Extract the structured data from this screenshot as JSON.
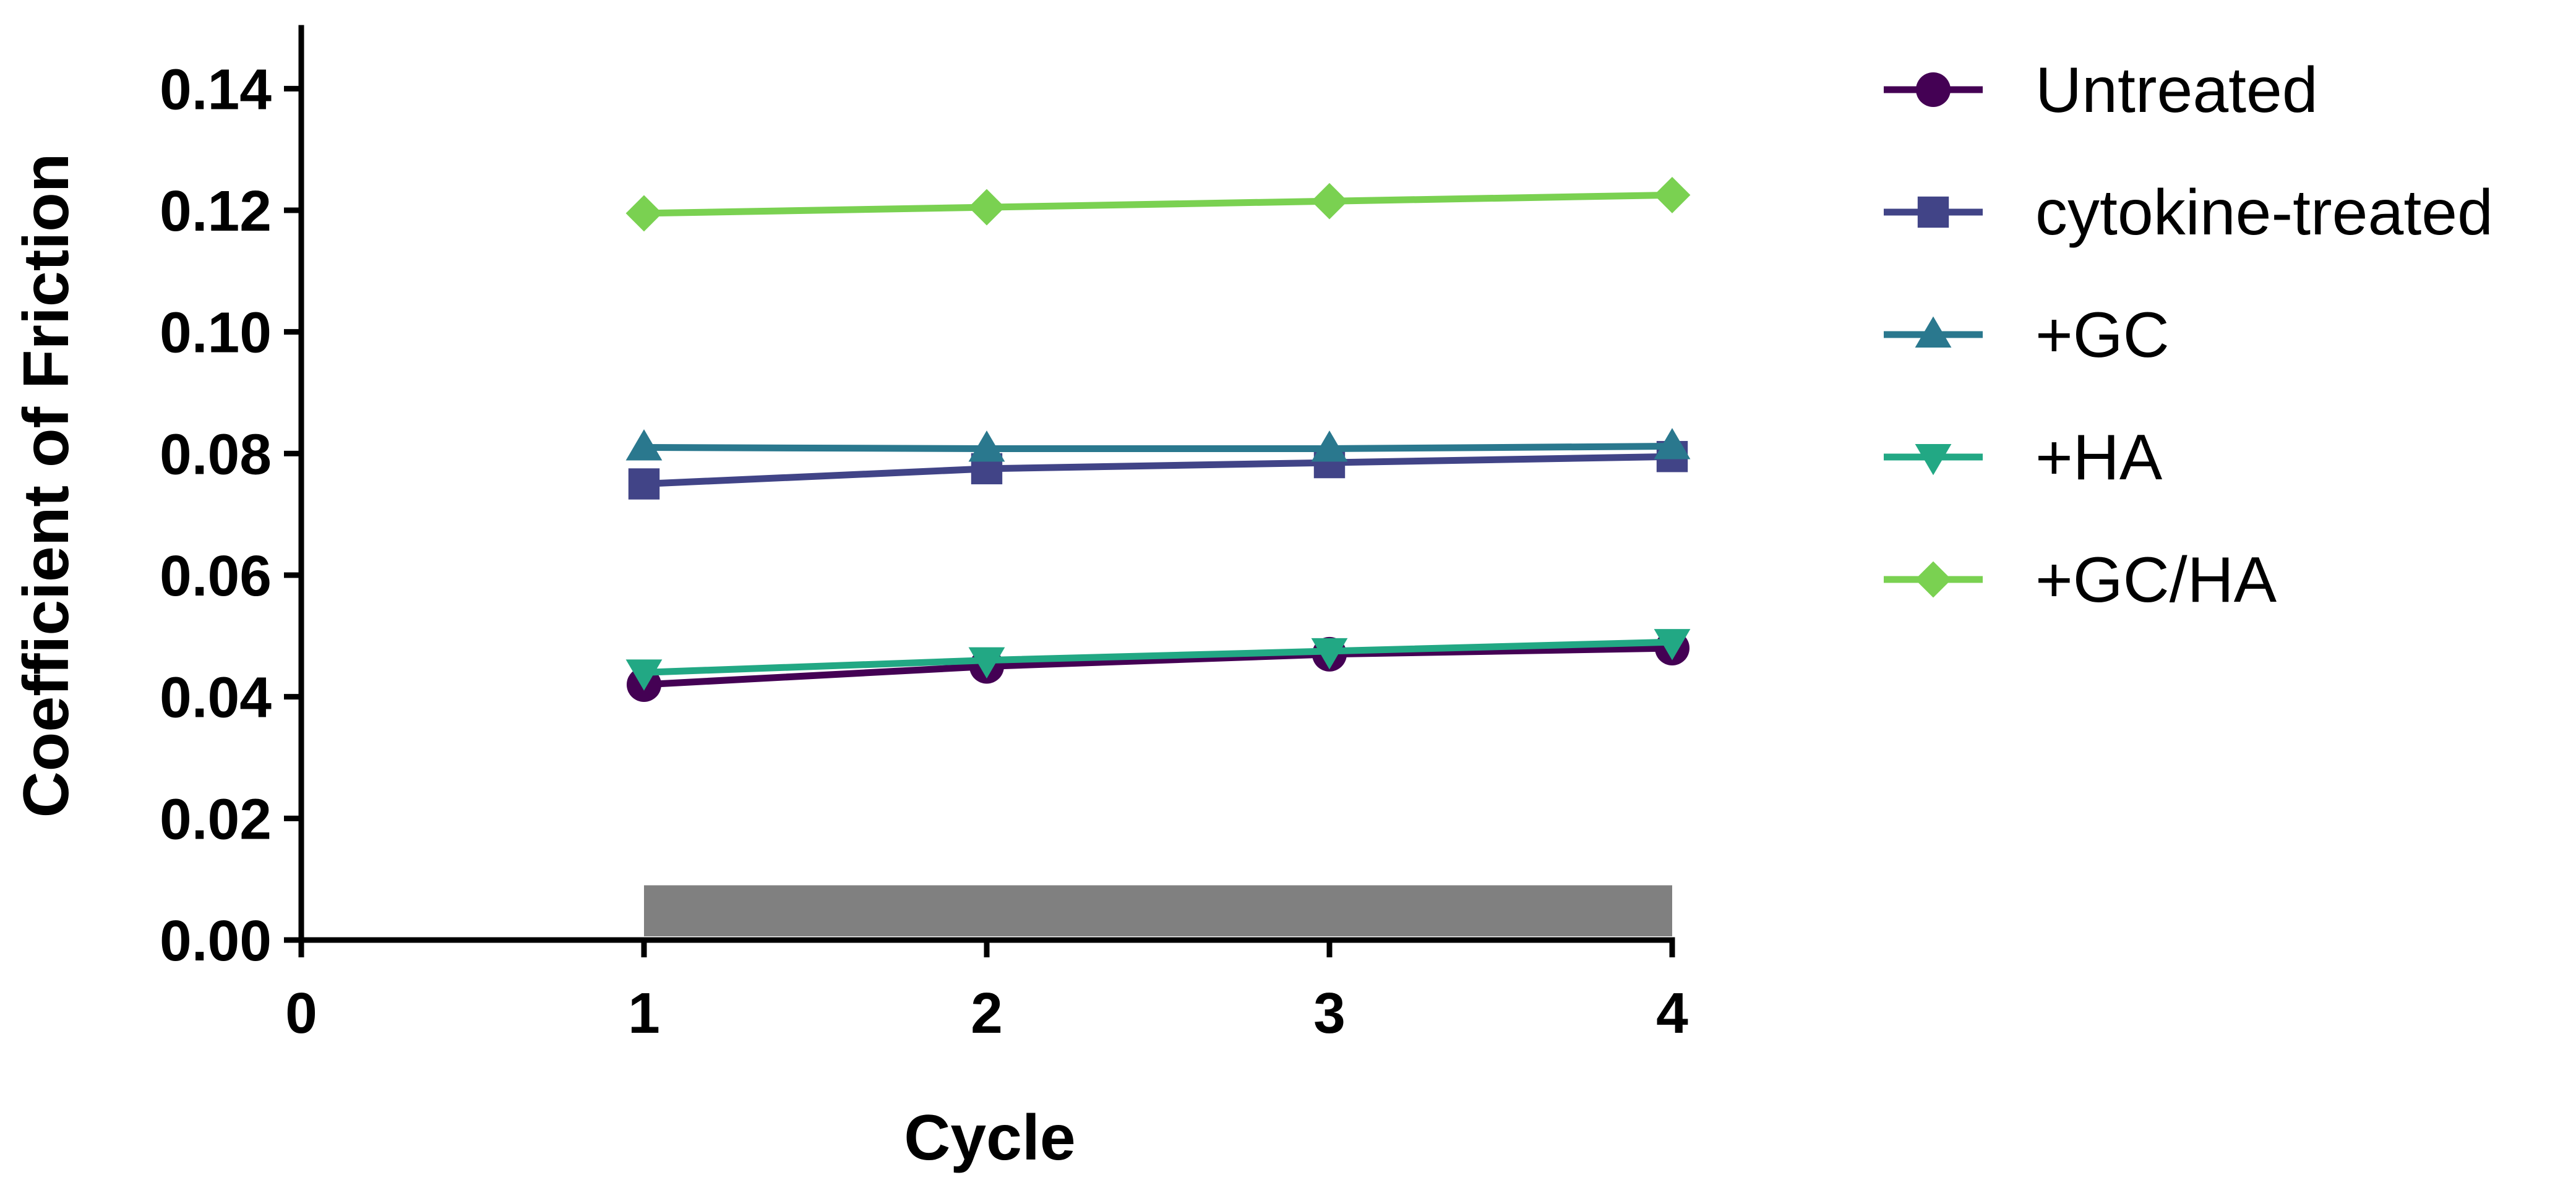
{
  "chart_data": {
    "type": "line",
    "title": "",
    "xlabel": "Cycle",
    "ylabel": "Coefficient of Friction",
    "xlim": [
      0,
      4
    ],
    "ylim": [
      0,
      0.15
    ],
    "xticks": [
      "0",
      "1",
      "2",
      "3",
      "4"
    ],
    "yticks": [
      "0.00",
      "0.02",
      "0.04",
      "0.06",
      "0.08",
      "0.10",
      "0.12",
      "0.14"
    ],
    "x": [
      1,
      2,
      3,
      4
    ],
    "grid": false,
    "legend_position": "right",
    "annotations": [
      {
        "type": "horizontal-bar",
        "x_start": 1,
        "x_end": 4,
        "y_from": 0.0,
        "y_to": 0.009,
        "color": "#808080"
      }
    ],
    "series": [
      {
        "name": "Untreated",
        "values": [
          0.042,
          0.045,
          0.047,
          0.048
        ],
        "color": "#440154",
        "marker": "circle"
      },
      {
        "name": "cytokine-treated",
        "values": [
          0.075,
          0.0775,
          0.0785,
          0.0795
        ],
        "color": "#414487",
        "marker": "square"
      },
      {
        "name": "+GC",
        "values": [
          0.081,
          0.0808,
          0.0808,
          0.0812
        ],
        "color": "#2A788E",
        "marker": "triangle-up"
      },
      {
        "name": "+HA",
        "values": [
          0.044,
          0.046,
          0.0475,
          0.049
        ],
        "color": "#22A884",
        "marker": "triangle-down"
      },
      {
        "name": "+GC/HA",
        "values": [
          0.1195,
          0.1205,
          0.1215,
          0.1225
        ],
        "color": "#7AD151",
        "marker": "diamond"
      }
    ]
  }
}
